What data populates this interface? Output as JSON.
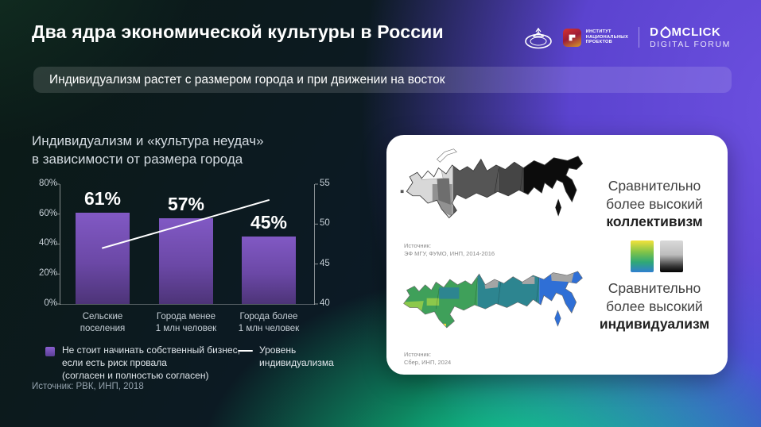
{
  "slide": {
    "title": "Два ядра экономической культуры в России",
    "banner": "Индивидуализм растет с размером города и при движении на восток"
  },
  "header_logos": {
    "university_emblem": "msu-globe-emblem",
    "inp": {
      "lines": "ИНСТИТУТ\nНАЦИОНАЛЬНЫХ\nПРОЕКТОВ"
    },
    "domclick": {
      "word_start": "D",
      "word_end": "MCLICK",
      "tagline": "DIGITAL FORUM"
    }
  },
  "chart_data": {
    "type": "bar",
    "title": "Индивидуализм и «культура неудач»\nв зависимости от размера города",
    "categories": [
      "Сельские\nпоселения",
      "Города менее\n1 млн человек",
      "Города более\n1 млн человек"
    ],
    "series": [
      {
        "name": "Не стоит начинать собственный бизнес,\nесли есть риск провала\n(согласен и полностью согласен)",
        "type": "bar",
        "axis": "left",
        "values": [
          61,
          57,
          45
        ],
        "labels": [
          "61%",
          "57%",
          "45%"
        ],
        "color": "#7a55c0"
      },
      {
        "name": "Уровень\nиндивидуализма",
        "type": "line",
        "axis": "right",
        "values": [
          47,
          50,
          53
        ],
        "color": "#ffffff"
      }
    ],
    "left_axis": {
      "min": 0,
      "max": 80,
      "ticks": [
        "0%",
        "20%",
        "40%",
        "60%",
        "80%"
      ]
    },
    "right_axis": {
      "min": 40,
      "max": 55,
      "ticks": [
        "40",
        "45",
        "50",
        "55"
      ]
    },
    "grid": false,
    "legend_position": "bottom",
    "source": "Источник: РВК, ИНП, 2018"
  },
  "maps_card": {
    "collectivism": {
      "caption_lines": "Сравнительно\nболее высокий",
      "caption_bold": "коллективизм",
      "source": "Источник:\nЭФ МГУ, ФУМО, ИНП, 2014-2016"
    },
    "individualism": {
      "caption_lines": "Сравнительно\nболее высокий",
      "caption_bold": "индивидуализм",
      "source": "Источник:\nСбер, ИНП, 2024"
    },
    "scale_colors": {
      "top": "#f2e23a",
      "mid": "#2fa876",
      "bottom": "#2f7fd0",
      "gray_top": "#d9d9d9",
      "gray_bottom": "#000000"
    }
  },
  "colors": {
    "accent_purple": "#6a4fdd",
    "accent_green": "#0ee592",
    "bar_purple": "#7a55c0"
  }
}
